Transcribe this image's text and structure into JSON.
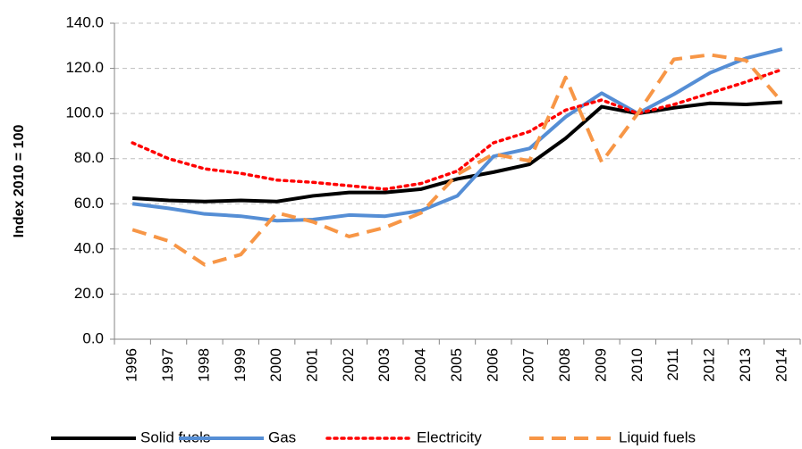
{
  "chart_data": {
    "type": "line",
    "y_label": "Index 2010 = 100",
    "categories": [
      "1996",
      "1997",
      "1998",
      "1999",
      "2000",
      "2001",
      "2002",
      "2003",
      "2004",
      "2005",
      "2006",
      "2007",
      "2008",
      "2009",
      "2010",
      "2011",
      "2012",
      "2013",
      "2014"
    ],
    "series": [
      {
        "name": "Solid fuels",
        "color": "#000000",
        "style": "solid",
        "values": [
          62.5,
          61.5,
          61,
          61.5,
          61,
          63.5,
          65,
          65,
          66.5,
          71,
          74,
          77.5,
          89,
          103,
          100,
          102.5,
          104.5,
          104,
          105
        ]
      },
      {
        "name": "Gas",
        "color": "#558ed5",
        "style": "solid",
        "values": [
          60,
          58,
          55.5,
          54.5,
          52.5,
          53,
          55,
          54.5,
          57,
          63.5,
          81,
          84.5,
          98.5,
          109,
          100,
          108.5,
          118,
          124.5,
          128.5
        ]
      },
      {
        "name": "Electricity",
        "color": "#ff0000",
        "style": "dotted",
        "values": [
          87,
          80,
          75.5,
          73.5,
          70.5,
          69.5,
          68,
          66.5,
          69,
          74.5,
          87,
          92,
          101.5,
          106,
          100,
          104,
          109,
          114,
          119.5
        ]
      },
      {
        "name": "Liquid fuels",
        "color": "#f79646",
        "style": "dashed",
        "values": [
          48.5,
          43.5,
          33,
          37.5,
          56,
          52,
          45.5,
          49.5,
          56,
          73,
          82,
          79,
          116,
          78.5,
          100,
          124,
          126,
          123.5,
          105
        ]
      }
    ],
    "ylim": [
      0,
      140
    ],
    "yticks": [
      {
        "value": 0,
        "label": "0.0"
      },
      {
        "value": 20,
        "label": "20.0"
      },
      {
        "value": 40,
        "label": "40.0"
      },
      {
        "value": 60,
        "label": "60.0"
      },
      {
        "value": 80,
        "label": "80.0"
      },
      {
        "value": 100,
        "label": "100.0"
      },
      {
        "value": 120,
        "label": "120.0"
      },
      {
        "value": 140,
        "label": "140.0"
      }
    ],
    "grid": true,
    "legend": "bottom"
  }
}
